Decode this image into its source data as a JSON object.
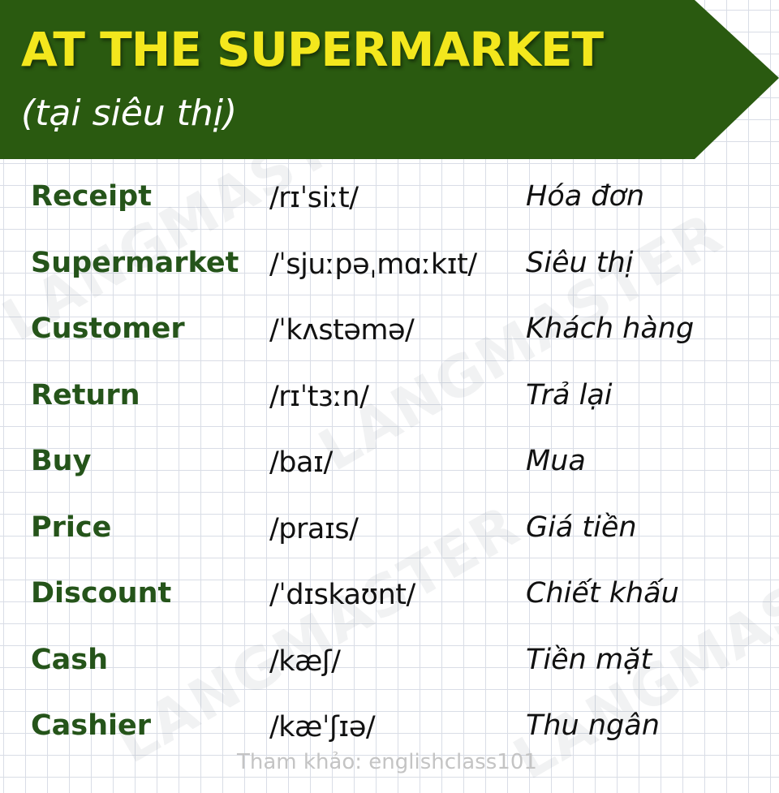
{
  "header": {
    "title": "AT THE SUPERMARKET",
    "subtitle": "(tại siêu thị)"
  },
  "colors": {
    "banner": "#2a5a10",
    "title": "#f3e71d",
    "word": "#25541a"
  },
  "watermark": "LANGMASTER",
  "vocabulary": [
    {
      "word": "Receipt",
      "ipa": "/rɪˈsiːt/",
      "meaning": "Hóa đơn"
    },
    {
      "word": "Supermarket",
      "ipa": "/ˈsjuːpəˌmɑːkɪt/",
      "meaning": "Siêu thị"
    },
    {
      "word": "Customer",
      "ipa": "/ˈkʌstəmə/",
      "meaning": "Khách hàng"
    },
    {
      "word": "Return",
      "ipa": "/rɪˈtɜːn/",
      "meaning": "Trả lại"
    },
    {
      "word": "Buy",
      "ipa": "/baɪ/",
      "meaning": "Mua"
    },
    {
      "word": "Price",
      "ipa": "/praɪs/",
      "meaning": "Giá tiền"
    },
    {
      "word": "Discount",
      "ipa": "/ˈdɪskaʊnt/",
      "meaning": "Chiết khấu"
    },
    {
      "word": "Cash",
      "ipa": "/kæʃ/",
      "meaning": "Tiền mặt"
    },
    {
      "word": "Cashier",
      "ipa": "/kæˈʃɪə/",
      "meaning": "Thu ngân"
    }
  ],
  "footer": {
    "credit": "Tham khảo: englishclass101"
  }
}
